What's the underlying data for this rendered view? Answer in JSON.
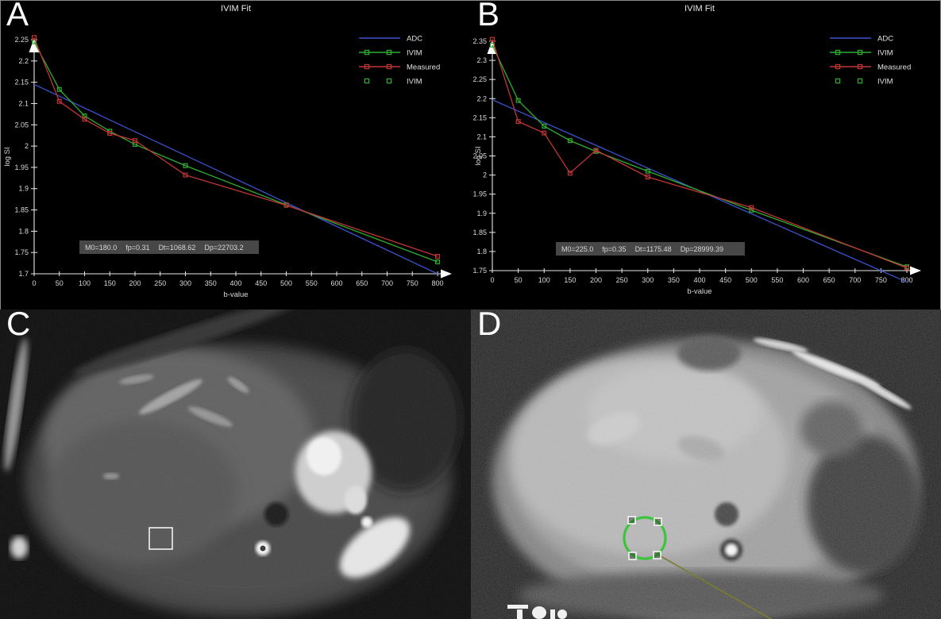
{
  "page": {
    "background": "#000000"
  },
  "panels": {
    "a": {
      "label": "A"
    },
    "b": {
      "label": "B"
    },
    "c": {
      "label": "C",
      "image_type": "axial diffusion-weighted MR image",
      "roi": {
        "shape": "square",
        "color": "#f2f2f2"
      }
    },
    "d": {
      "label": "D",
      "image_type": "axial ADC map",
      "roi": {
        "shape": "circle",
        "color": "#35c435",
        "handle_color": "#f5f5f5",
        "leader_color": "#7d7d2e"
      }
    }
  },
  "chart_data": [
    {
      "type": "line",
      "panel": "A",
      "title": "IVIM Fit",
      "xlabel": "b-value",
      "ylabel": "log SI",
      "xlim": [
        0,
        800
      ],
      "ylim": [
        1.7,
        2.25
      ],
      "grid": false,
      "legend_position": "top-right",
      "xticks": [
        "0",
        "50",
        "100",
        "150",
        "200",
        "250",
        "300",
        "350",
        "400",
        "450",
        "500",
        "550",
        "600",
        "650",
        "700",
        "750",
        "800"
      ],
      "yticks": [
        "2.25",
        "2.2",
        "2.15",
        "2.1",
        "2.05",
        "2",
        "1.95",
        "1.9",
        "1.85",
        "1.8",
        "1.75",
        "1.7"
      ],
      "x": [
        0,
        50,
        100,
        150,
        200,
        300,
        500,
        800
      ],
      "series": [
        {
          "name": "ADC",
          "kind": "line",
          "color": "#3c52cc",
          "x": [
            0,
            800
          ],
          "values": [
            2.145,
            1.7
          ]
        },
        {
          "name": "IVIM",
          "kind": "line-markers",
          "color": "#2fae2f",
          "values": [
            2.245,
            2.133,
            2.071,
            2.035,
            2.004,
            1.954,
            1.862,
            1.728
          ]
        },
        {
          "name": "Measured",
          "kind": "line-markers",
          "color": "#c23535",
          "values": [
            2.255,
            2.105,
            2.063,
            2.03,
            2.013,
            1.932,
            1.861,
            1.741
          ]
        },
        {
          "name": "IVIM",
          "kind": "markers",
          "color": "#2fae2f",
          "values": []
        }
      ],
      "fit_parameters": [
        "M0=180.0",
        "fp=0.31",
        "Dt=1068.62",
        "Dp=22703.2"
      ]
    },
    {
      "type": "line",
      "panel": "B",
      "title": "IVIM Fit",
      "xlabel": "b-value",
      "ylabel": "log SI",
      "xlim": [
        0,
        800
      ],
      "ylim": [
        1.75,
        2.35
      ],
      "grid": false,
      "legend_position": "top-right",
      "xticks": [
        "0",
        "50",
        "100",
        "150",
        "200",
        "250",
        "300",
        "350",
        "400",
        "450",
        "500",
        "550",
        "600",
        "650",
        "700",
        "750",
        "800"
      ],
      "yticks": [
        "2.35",
        "2.3",
        "2.25",
        "2.2",
        "2.15",
        "2.1",
        "2.05",
        "2",
        "1.95",
        "1.9",
        "1.85",
        "1.8",
        "1.75"
      ],
      "x": [
        0,
        50,
        100,
        150,
        200,
        300,
        500,
        800
      ],
      "series": [
        {
          "name": "ADC",
          "kind": "line",
          "color": "#3c52cc",
          "x": [
            0,
            800
          ],
          "values": [
            2.197,
            1.72
          ]
        },
        {
          "name": "IVIM",
          "kind": "line-markers",
          "color": "#2fae2f",
          "values": [
            2.34,
            2.195,
            2.128,
            2.09,
            2.062,
            2.01,
            1.908,
            1.76
          ]
        },
        {
          "name": "Measured",
          "kind": "line-markers",
          "color": "#c23535",
          "values": [
            2.355,
            2.14,
            2.11,
            2.005,
            2.065,
            1.995,
            1.915,
            1.757
          ]
        },
        {
          "name": "IVIM",
          "kind": "markers",
          "color": "#2fae2f",
          "values": []
        }
      ],
      "fit_parameters": [
        "M0=225.0",
        "fp=0.35",
        "Dt=1175.48",
        "Dp=28999.39"
      ]
    }
  ]
}
